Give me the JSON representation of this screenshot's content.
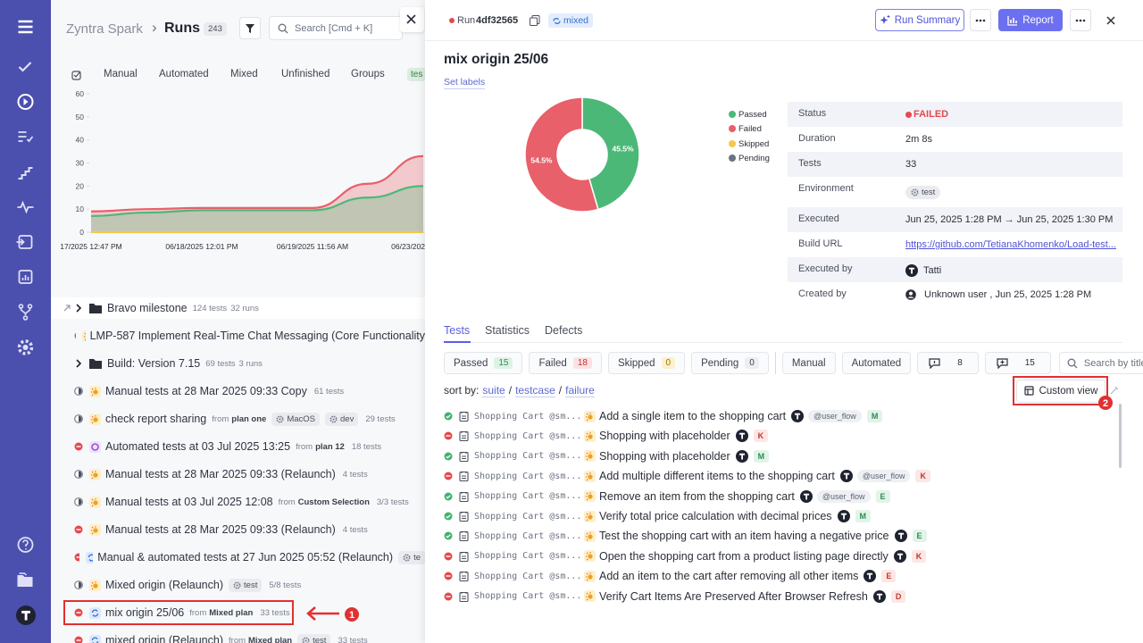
{
  "app": {
    "project": "Zyntra Spark",
    "separator": "›",
    "page": "Runs",
    "run_count": 243,
    "search_placeholder": "Search [Cmd + K]",
    "tabs": [
      "Manual",
      "Automated",
      "Mixed",
      "Unfinished",
      "Groups"
    ],
    "tag_chip": "tes",
    "from_label": "from"
  },
  "runs_chart": {
    "type": "area",
    "categories": [
      "17/2025 12:47 PM",
      null,
      "06/18/2025 12:01 PM",
      null,
      "06/19/2025 11:56 AM",
      null,
      "06/23/202"
    ],
    "series": [
      {
        "color": "#e8606a",
        "values": [
          9,
          10,
          10.5,
          10.5,
          10.5,
          21,
          33
        ]
      },
      {
        "color": "#4cb877",
        "values": [
          7,
          8.5,
          9.5,
          9.5,
          9.5,
          15,
          20
        ]
      },
      {
        "color": "#f2c94c",
        "values": [
          0,
          0,
          0,
          0,
          0,
          0,
          0
        ]
      }
    ],
    "ylim": [
      0,
      60
    ],
    "yticks": [
      0,
      10,
      20,
      30,
      40,
      50,
      60
    ]
  },
  "runs": [
    {
      "kind": "group",
      "name": "Bravo milestone",
      "tests": "124 tests",
      "runs": "32 runs"
    },
    {
      "status": "failed",
      "type": "manual",
      "name": "LMP-587 Implement Real-Time Chat Messaging (Core Functionality"
    },
    {
      "kind": "group",
      "name": "Build: Version 7.15",
      "tests": "69 tests",
      "runs": "3 runs"
    },
    {
      "status": "pending",
      "type": "manual",
      "name": "Manual tests at 28 Mar 2025 09:33 Copy",
      "tests": "61 tests"
    },
    {
      "status": "pending",
      "type": "manual",
      "name": "check report sharing",
      "from": "plan one",
      "tags": [
        "MacOS",
        "dev"
      ],
      "tests": "29 tests"
    },
    {
      "status": "failed",
      "type": "automated",
      "name": "Automated tests at 03 Jul 2025 13:25",
      "from": "plan 12",
      "tests": "18 tests"
    },
    {
      "status": "pending",
      "type": "manual",
      "name": "Manual tests at 28 Mar 2025 09:33 (Relaunch)",
      "tests": "4 tests"
    },
    {
      "status": "pending",
      "type": "manual",
      "name": "Manual tests at 03 Jul 2025 12:08",
      "from": "Custom Selection",
      "tests": "3/3 tests"
    },
    {
      "status": "failed",
      "type": "manual",
      "name": "Manual tests at 28 Mar 2025 09:33 (Relaunch)",
      "tests": "4 tests"
    },
    {
      "status": "failed",
      "type": "mixed",
      "name": "Manual & automated tests at 27 Jun 2025 05:52 (Relaunch)",
      "tags": [
        "te"
      ]
    },
    {
      "status": "pending",
      "type": "manual",
      "name": "Mixed origin (Relaunch)",
      "tags": [
        "test"
      ],
      "tests": "5/8 tests"
    },
    {
      "status": "failed",
      "type": "mixed",
      "name": "mix origin 25/06",
      "from": "Mixed plan",
      "tests": "33 tests",
      "selected": true
    },
    {
      "status": "failed",
      "type": "mixed",
      "name": "mixed origin (Relaunch)",
      "from": "Mixed plan",
      "tags": [
        "test"
      ],
      "tests": "33 tests"
    }
  ],
  "run": {
    "label": "Run",
    "id": "4df32565",
    "kind": "mixed",
    "title": "mix origin 25/06",
    "set_labels": "Set labels",
    "summary_button": "Run Summary",
    "report_button": "Report"
  },
  "donut": {
    "type": "pie",
    "categories": [
      "Passed",
      "Failed",
      "Skipped",
      "Pending"
    ],
    "values": [
      45.5,
      54.5,
      0,
      0
    ],
    "value_labels": [
      "45.5%",
      "54.5%",
      null,
      null
    ],
    "colors": [
      "#4cb877",
      "#e8606a",
      "#f2c94c",
      "#6b7280"
    ]
  },
  "details": [
    {
      "label": "Status",
      "value": "FAILED"
    },
    {
      "label": "Duration",
      "value": "2m 8s"
    },
    {
      "label": "Tests",
      "value": 33
    },
    {
      "label": "Environment",
      "value": "test"
    },
    {
      "label": "Executed",
      "value": "Jun 25, 2025 1:28 PM → Jun 25, 2025 1:30 PM"
    },
    {
      "label": "Build URL",
      "value": "https://github.com/TetianaKhomenko/Load-test..."
    },
    {
      "label": "Executed by",
      "value": "Tatti"
    },
    {
      "label": "Created by",
      "value": "Unknown user , Jun 25, 2025 1:28 PM"
    }
  ],
  "detail_tabs": [
    "Tests",
    "Statistics",
    "Defects"
  ],
  "filters": [
    {
      "label": "Passed",
      "count": 15
    },
    {
      "label": "Failed",
      "count": 18
    },
    {
      "label": "Skipped",
      "count": 0
    },
    {
      "label": "Pending",
      "count": 0
    },
    {
      "label": "Manual"
    },
    {
      "label": "Automated"
    },
    {
      "count": 8
    },
    {
      "count": 15
    }
  ],
  "filter_search": "Search by title/mes",
  "sort": {
    "label": "sort by:",
    "options": [
      "suite",
      "testcase",
      "failure"
    ],
    "separator": "/"
  },
  "custom_view": "Custom view",
  "annotations": [
    1,
    2
  ],
  "tests": [
    {
      "status": "passed",
      "suite": "Shopping Cart @sm...",
      "title": "Add a single item to the shopping cart",
      "tag": "@user_flow",
      "assignee": "M"
    },
    {
      "status": "failed",
      "suite": "Shopping Cart @sm...",
      "title": "Shopping with placeholder",
      "assignee": "K"
    },
    {
      "status": "passed",
      "suite": "Shopping Cart @sm...",
      "title": "Shopping with placeholder",
      "assignee": "M"
    },
    {
      "status": "failed",
      "suite": "Shopping Cart @sm...",
      "title": "Add multiple different items to the shopping cart",
      "tag": "@user_flow",
      "assignee": "K"
    },
    {
      "status": "passed",
      "suite": "Shopping Cart @sm...",
      "title": "Remove an item from the shopping cart",
      "tag": "@user_flow",
      "assignee": "E"
    },
    {
      "status": "passed",
      "suite": "Shopping Cart @sm...",
      "title": "Verify total price calculation with decimal prices",
      "assignee": "M"
    },
    {
      "status": "passed",
      "suite": "Shopping Cart @sm...",
      "title": "Test the shopping cart with an item having a negative price",
      "assignee": "E"
    },
    {
      "status": "failed",
      "suite": "Shopping Cart @sm...",
      "title": "Open the shopping cart from a product listing page directly",
      "assignee": "K"
    },
    {
      "status": "failed",
      "suite": "Shopping Cart @sm...",
      "title": "Add an item to the cart after removing all other items",
      "assignee": "E"
    },
    {
      "status": "failed",
      "suite": "Shopping Cart @sm...",
      "title": "Verify Cart Items Are Preserved After Browser Refresh",
      "assignee": "D"
    }
  ]
}
